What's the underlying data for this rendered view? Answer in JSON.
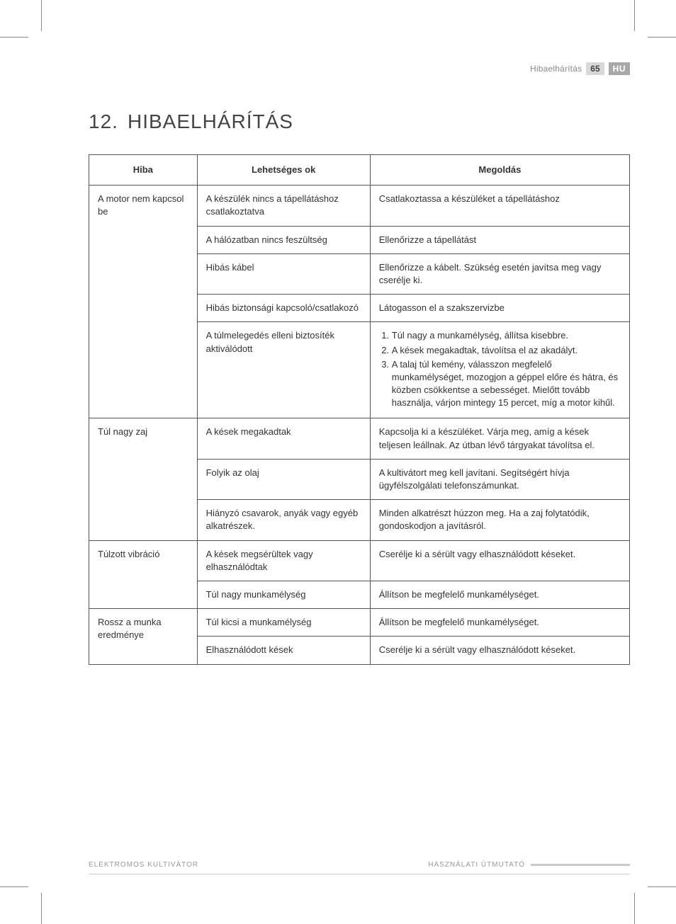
{
  "header": {
    "section": "Hibaelhárítás",
    "page_number": "65",
    "lang": "HU"
  },
  "title": {
    "number": "12.",
    "text": "HIBAELHÁRÍTÁS"
  },
  "table": {
    "headers": [
      "Hiba",
      "Lehetséges ok",
      "Megoldás"
    ],
    "groups": [
      {
        "problem": "A motor nem kapcsol be",
        "rows": [
          {
            "cause": "A készülék nincs a tápellátáshoz csatlakoztatva",
            "solution": "Csatlakoztassa a készüléket a tápellátáshoz"
          },
          {
            "cause": "A hálózatban nincs feszültség",
            "solution": "Ellenőrizze a tápellátást"
          },
          {
            "cause": "Hibás kábel",
            "solution": "Ellenőrizze a kábelt. Szükség esetén javítsa meg vagy cserélje ki."
          },
          {
            "cause": "Hibás biztonsági kapcsoló/csatlakozó",
            "solution": "Látogasson el a szakszervizbe"
          },
          {
            "cause": "A túlmelegedés elleni biztosíték aktiválódott",
            "solution_list": [
              "Túl nagy a munkamélység, állítsa kisebbre.",
              "A kések megakadtak, távolítsa el az akadályt.",
              "A talaj túl kemény, válasszon megfelelő munkamélységet, mozogjon a géppel előre és hátra, és közben csökkentse a sebességet. Mielőtt tovább használja, várjon mintegy 15 percet, míg a motor kihűl."
            ]
          }
        ]
      },
      {
        "problem": "Túl nagy zaj",
        "rows": [
          {
            "cause": "A kések megakadtak",
            "solution": "Kapcsolja ki a készüléket. Várja meg, amíg a kések teljesen leállnak. Az útban lévő tárgyakat távolítsa el."
          },
          {
            "cause": "Folyik az olaj",
            "solution": "A kultivátort meg kell javítani. Segítségért hívja ügyfélszolgálati telefonszámunkat."
          },
          {
            "cause": "Hiányzó csavarok, anyák vagy egyéb alkatrészek.",
            "solution": "Minden alkatrészt húzzon meg. Ha a zaj folytatódik, gondoskodjon a javításról."
          }
        ]
      },
      {
        "problem": "Túlzott vibráció",
        "rows": [
          {
            "cause": "A kések megsérültek vagy elhasználódtak",
            "solution": "Cserélje ki a sérült vagy elhasználódott késeket."
          },
          {
            "cause": "Túl nagy munkamélység",
            "solution": "Állítson be megfelelő munkamélységet."
          }
        ]
      },
      {
        "problem": "Rossz a munka eredménye",
        "rows": [
          {
            "cause": "Túl kicsi a munkamélység",
            "solution": "Állítson be megfelelő munkamélységet."
          },
          {
            "cause": "Elhasználódott kések",
            "solution": "Cserélje ki a sérült vagy elhasználódott késeket."
          }
        ]
      }
    ]
  },
  "footer": {
    "left": "ELEKTROMOS KULTIVÁTOR",
    "right": "HASZNÁLATI ÚTMUTATÓ"
  },
  "colors": {
    "text": "#333333",
    "muted": "#888888",
    "border": "#555555",
    "badge_bg": "#d8d8d8",
    "lang_bg": "#a8a8a8",
    "background": "#ffffff"
  },
  "typography": {
    "title_fontsize": 28,
    "body_fontsize": 13,
    "header_fontsize": 12,
    "footer_fontsize": 10
  }
}
